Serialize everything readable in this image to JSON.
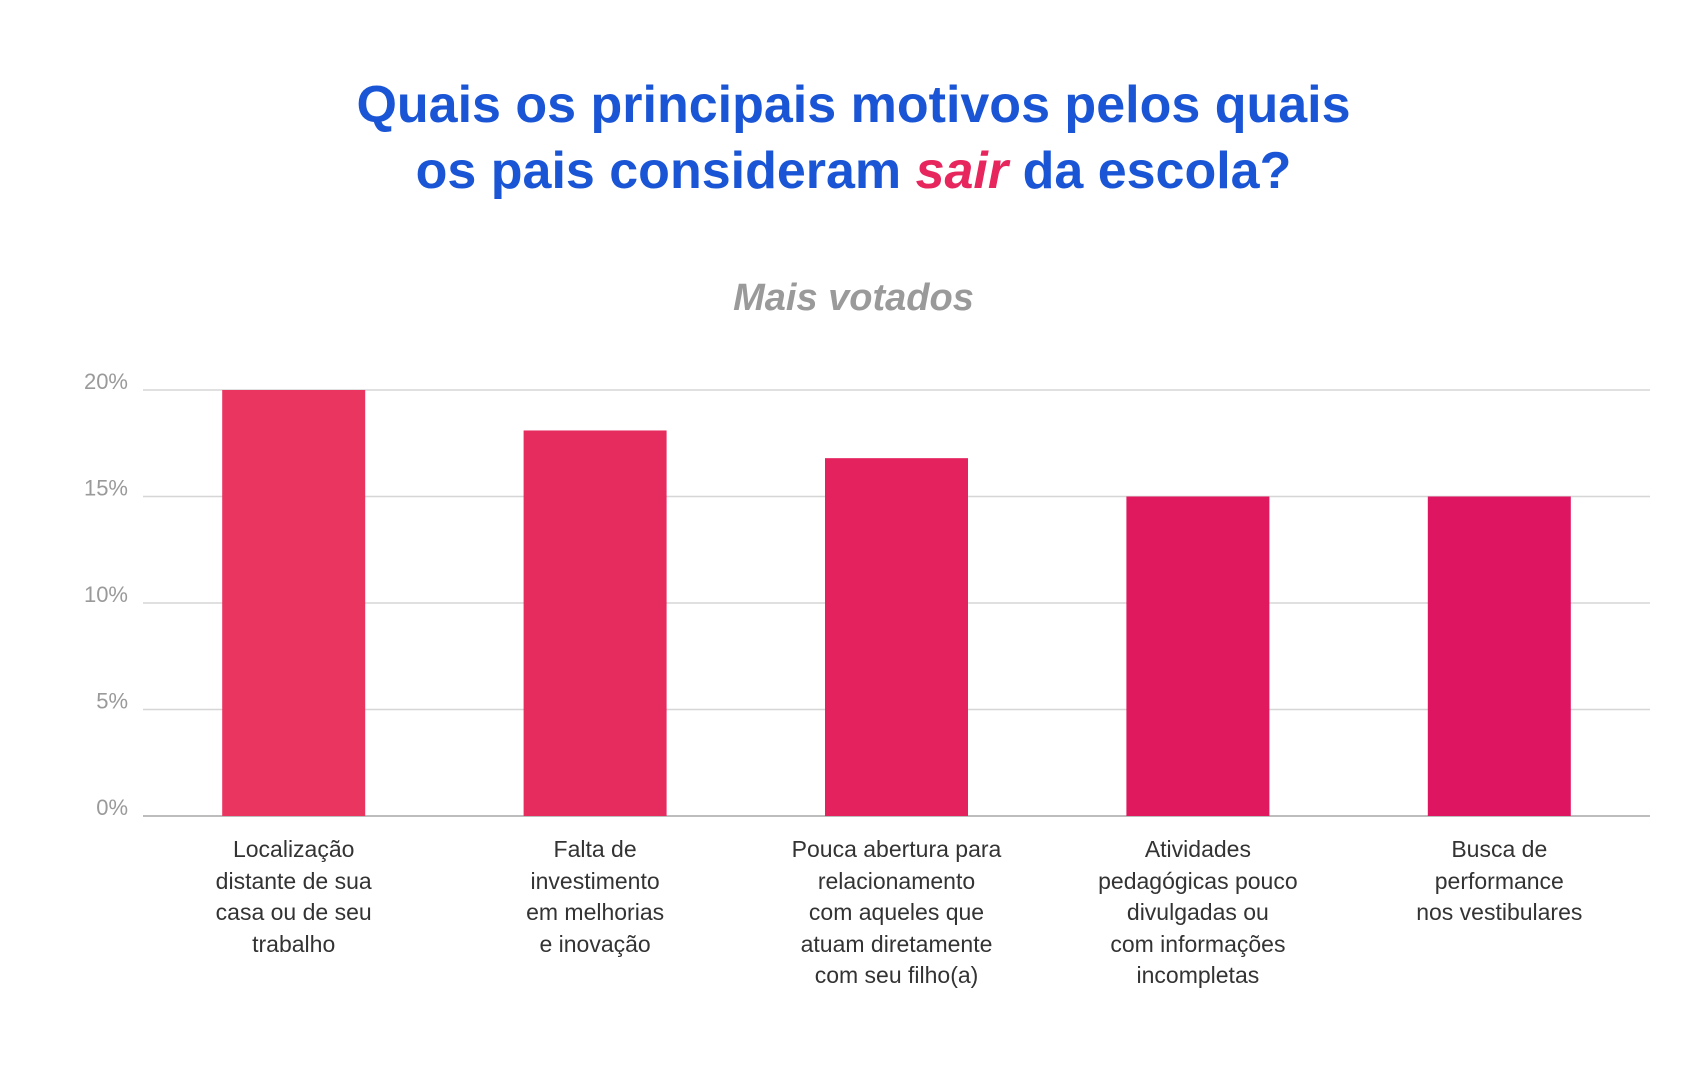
{
  "title": {
    "line1": "Quais os principais motivos pelos quais",
    "line2_before": "os pais consideram ",
    "line2_highlight": "sair",
    "line2_after": " da escola?"
  },
  "colors": {
    "title": "#1a55d6",
    "highlight": "#e6265c",
    "subtitle": "#9a9a9a",
    "grid": "#d6d6d6"
  },
  "chart_data": {
    "type": "bar",
    "title": "Quais os principais motivos pelos quais os pais consideram sair da escola?",
    "subtitle": "Mais votados",
    "xlabel": "",
    "ylabel": "",
    "ylim": [
      0,
      20
    ],
    "yticks": [
      0,
      5,
      10,
      15,
      20
    ],
    "ytick_labels": [
      "0%",
      "5%",
      "10%",
      "15%",
      "20%"
    ],
    "grid": true,
    "categories": [
      [
        "Localização",
        "distante de sua",
        "casa ou de seu",
        "trabalho"
      ],
      [
        "Falta de",
        "investimento",
        "em melhorias",
        "e inovação"
      ],
      [
        "Pouca abertura para",
        "relacionamento",
        "com aqueles que",
        "atuam diretamente",
        "com seu filho(a)"
      ],
      [
        "Atividades",
        "pedagógicas pouco",
        "divulgadas ou",
        "com informações",
        "incompletas"
      ],
      [
        "Busca de",
        "performance",
        "nos vestibulares"
      ]
    ],
    "values": [
      20,
      18.1,
      16.8,
      15,
      15
    ],
    "bar_colors": [
      "#ea3560",
      "#e62b5f",
      "#e3225e",
      "#e0195f",
      "#de1560"
    ]
  }
}
